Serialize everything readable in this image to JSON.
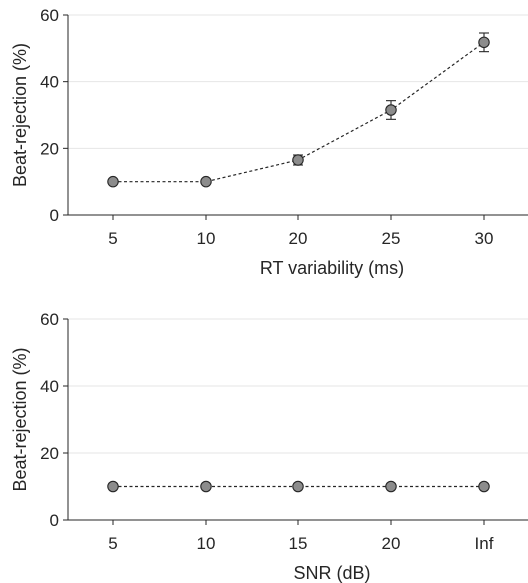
{
  "chart_data": [
    {
      "type": "line",
      "categories": [
        "5",
        "10",
        "20",
        "25",
        "30"
      ],
      "series": [
        {
          "values": [
            10,
            10,
            16.5,
            31.5,
            51.8
          ],
          "error": [
            0.6,
            0.6,
            1.5,
            2.8,
            2.8
          ]
        }
      ],
      "title": "",
      "xlabel": "RT variability (ms)",
      "ylabel": "Beat-rejection (%)",
      "ylim": [
        0,
        60
      ],
      "yticks": [
        "0",
        "20",
        "40",
        "60"
      ],
      "grid": "horizontal",
      "colors": {
        "marker": "#8c8c8c",
        "line": "#262626",
        "grid": "#e6e6e6"
      }
    },
    {
      "type": "line",
      "categories": [
        "5",
        "10",
        "15",
        "20",
        "Inf"
      ],
      "series": [
        {
          "values": [
            10,
            10,
            10,
            10,
            10
          ],
          "error": [
            0.4,
            0.4,
            0.4,
            0.4,
            0.4
          ]
        }
      ],
      "title": "",
      "xlabel": "SNR (dB)",
      "ylabel": "Beat-rejection (%)",
      "ylim": [
        0,
        60
      ],
      "yticks": [
        "0",
        "20",
        "40",
        "60"
      ],
      "grid": "horizontal",
      "colors": {
        "marker": "#8c8c8c",
        "line": "#262626",
        "grid": "#e6e6e6"
      }
    }
  ]
}
